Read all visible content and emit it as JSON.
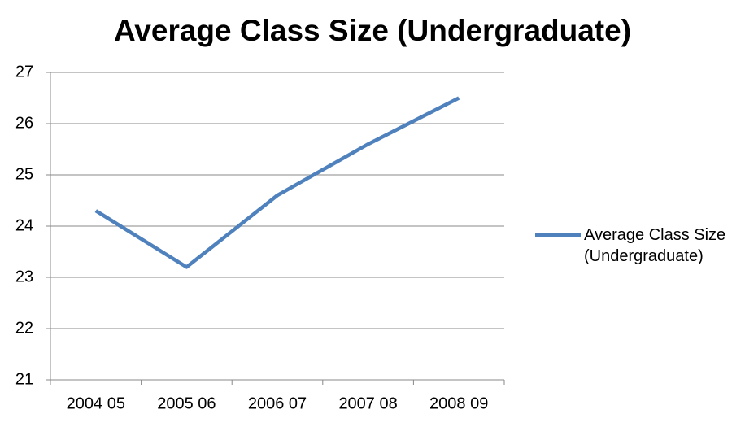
{
  "chart_data": {
    "type": "line",
    "title": "Average Class Size (Undergraduate)",
    "categories": [
      "2004 05",
      "2005 06",
      "2006 07",
      "2007 08",
      "2008 09"
    ],
    "series": [
      {
        "name": "Average Class Size (Undergraduate)",
        "color": "#4f81bd",
        "values": [
          24.3,
          23.2,
          24.6,
          25.6,
          26.5
        ]
      }
    ],
    "ylim": [
      21,
      27
    ],
    "yticks": [
      21,
      22,
      23,
      24,
      25,
      26,
      27
    ],
    "grid": true,
    "legend": "right"
  }
}
